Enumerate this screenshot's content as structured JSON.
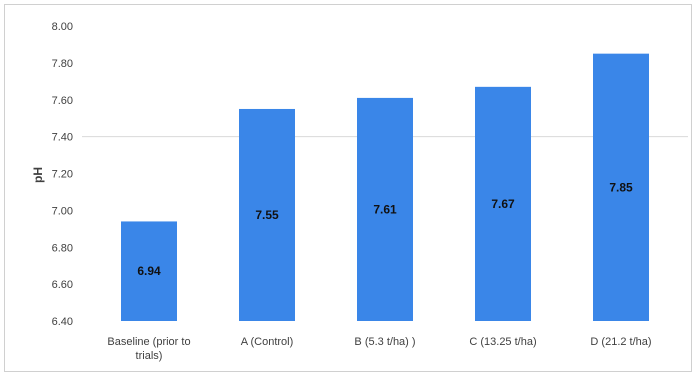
{
  "chart_data": {
    "type": "bar",
    "categories": [
      "Baseline (prior to trials)",
      "A (Control)",
      "B (5.3 t/ha) )",
      "C (13.25  t/ha)",
      "D (21.2 t/ha)"
    ],
    "category_lines": [
      [
        "Baseline (prior to",
        "trials)"
      ],
      [
        "A (Control)"
      ],
      [
        "B (5.3 t/ha) )"
      ],
      [
        "C (13.25  t/ha)"
      ],
      [
        "D (21.2 t/ha)"
      ]
    ],
    "values": [
      6.94,
      7.55,
      7.61,
      7.67,
      7.85
    ],
    "data_labels": [
      "6.94",
      "7.55",
      "7.61",
      "7.67",
      "7.85"
    ],
    "ylabel": "pH",
    "ylim": [
      6.4,
      8.0
    ],
    "yticks": [
      "6.40",
      "6.60",
      "6.80",
      "7.00",
      "7.20",
      "7.40",
      "7.60",
      "7.80",
      "8.00"
    ],
    "gridline_at": 7.4,
    "bar_color": "#3a86e8",
    "legend": "none"
  }
}
